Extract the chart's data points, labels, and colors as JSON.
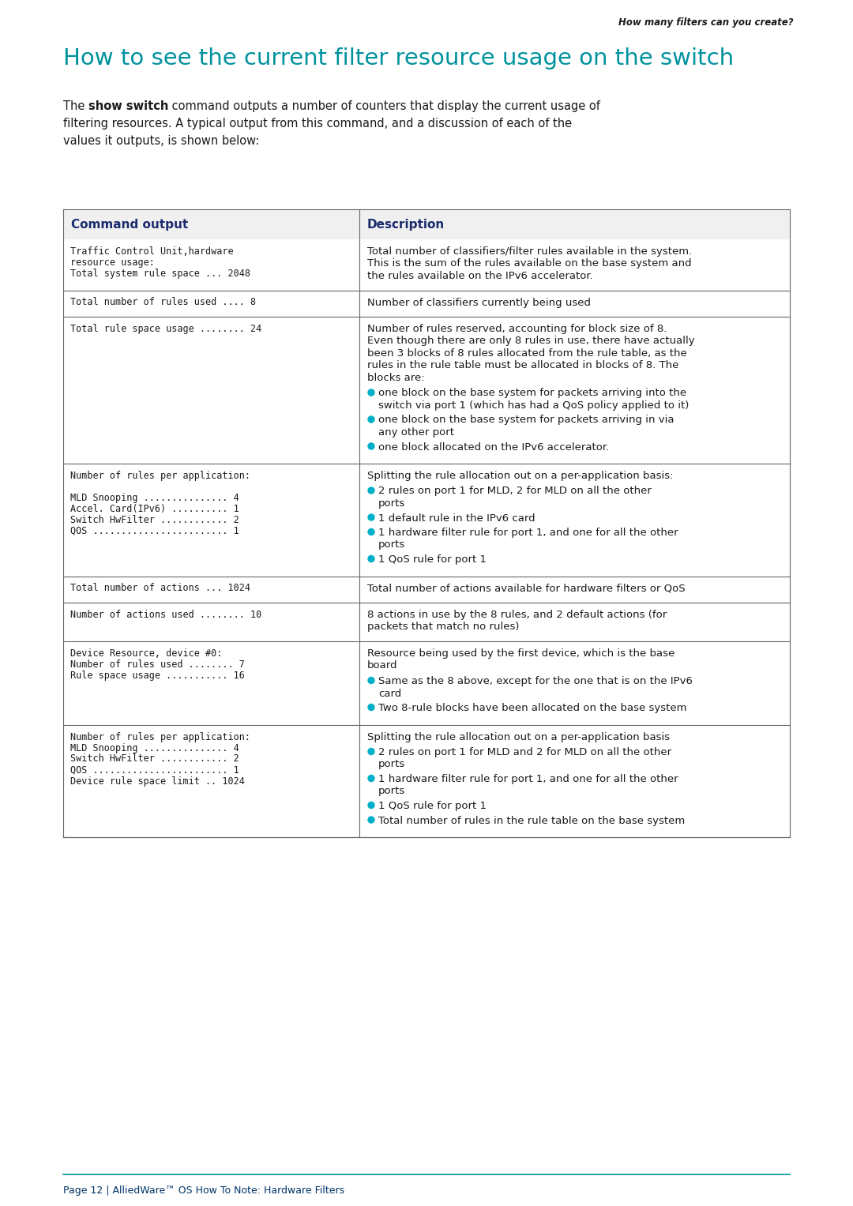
{
  "page_bg": "#ffffff",
  "header_right_text": "How many filters can you create?",
  "title": "How to see the current filter resource usage on the switch",
  "title_color": "#00929f",
  "intro_line1_pre": "The ",
  "intro_line1_bold": "show switch",
  "intro_line1_post": " command outputs a number of counters that display the current usage of",
  "intro_line2": "filtering resources. A typical output from this command, and a discussion of each of the",
  "intro_line3": "values it outputs, is shown below:",
  "table_header_bg": "#f0f0f0",
  "table_header_text_color": "#1a2a6c",
  "table_col1_header": "Command output",
  "table_col2_header": "Description",
  "table_border_color": "#666666",
  "bullet_color": "#00b0c8",
  "footer_line_color": "#00929f",
  "footer_text": "Page 12 | AlliedWare™ OS How To Note: Hardware Filters",
  "footer_text_color": "#003366",
  "rows": [
    {
      "col1": [
        "Traffic Control Unit,hardware",
        "resource usage:",
        "Total system rule space ... 2048"
      ],
      "col2_text": [
        "Total number of classifiers/filter rules available in the system.",
        "This is the sum of the rules available on the base system and",
        "the rules available on the IPv6 accelerator."
      ],
      "col2_bullets": []
    },
    {
      "col1": [
        "Total number of rules used .... 8"
      ],
      "col2_text": [
        "Number of classifiers currently being used"
      ],
      "col2_bullets": []
    },
    {
      "col1": [
        "Total rule space usage ........ 24"
      ],
      "col2_text": [
        "Number of rules reserved, accounting for block size of 8.",
        "Even though there are only 8 rules in use, there have actually",
        "been 3 blocks of 8 rules allocated from the rule table, as the",
        "rules in the rule table must be allocated in blocks of 8. The",
        "blocks are:"
      ],
      "col2_bullets": [
        [
          "one block on the base system for packets arriving into the",
          "switch via port 1 (which has had a QoS policy applied to it)"
        ],
        [
          "one block on the base system for packets arriving in via",
          "any other port"
        ],
        [
          "one block allocated on the IPv6 accelerator."
        ]
      ]
    },
    {
      "col1": [
        "Number of rules per application:",
        "",
        "MLD Snooping ............... 4",
        "Accel. Card(IPv6) .......... 1",
        "Switch HwFilter ............ 2",
        "QOS ........................ 1"
      ],
      "col2_text": [
        "Splitting the rule allocation out on a per-application basis:"
      ],
      "col2_bullets": [
        [
          "2 rules on port 1 for MLD, 2 for MLD on all the other",
          "ports"
        ],
        [
          "1 default rule in the IPv6 card"
        ],
        [
          "1 hardware filter rule for port 1, and one for all the other",
          "ports"
        ],
        [
          "1 QoS rule for port 1"
        ]
      ]
    },
    {
      "col1": [
        "Total number of actions ... 1024"
      ],
      "col2_text": [
        "Total number of actions available for hardware filters or QoS"
      ],
      "col2_bullets": []
    },
    {
      "col1": [
        "Number of actions used ........ 10"
      ],
      "col2_text": [
        "8 actions in use by the 8 rules, and 2 default actions (for",
        "packets that match no rules)"
      ],
      "col2_bullets": []
    },
    {
      "col1": [
        "Device Resource, device #0:",
        "Number of rules used ........ 7",
        "Rule space usage ........... 16"
      ],
      "col2_text": [
        "Resource being used by the first device, which is the base",
        "board"
      ],
      "col2_bullets": [
        [
          "Same as the 8 above, except for the one that is on the IPv6",
          "card"
        ],
        [
          "Two 8-rule blocks have been allocated on the base system"
        ]
      ]
    },
    {
      "col1": [
        "Number of rules per application:",
        "MLD Snooping ............... 4",
        "Switch HwFilter ............ 2",
        "QOS ........................ 1",
        "Device rule space limit .. 1024"
      ],
      "col2_text": [
        "Splitting the rule allocation out on a per-application basis"
      ],
      "col2_bullets": [
        [
          "2 rules on port 1 for MLD and 2 for MLD on all the other",
          "ports"
        ],
        [
          "1 hardware filter rule for port 1, and one for all the other",
          "ports"
        ],
        [
          "1 QoS rule for port 1"
        ],
        [
          "Total number of rules in the rule table on the base system"
        ]
      ]
    }
  ]
}
